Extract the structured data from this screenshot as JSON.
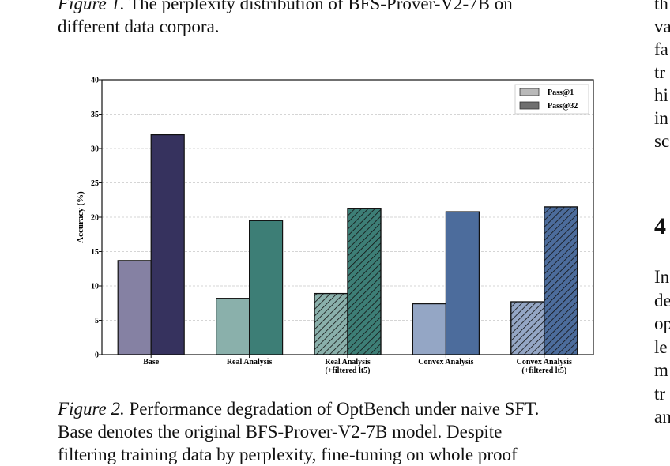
{
  "fig1_caption": {
    "label": "Figure 1.",
    "line1": "The perplexity distribution of BFS-Prover-V2-7B on",
    "line2": "different data corpora."
  },
  "fig2_caption": {
    "label": "Figure 2.",
    "line1": "Performance degradation of OptBench under naive SFT.",
    "line2": "Base denotes the original BFS-Prover-V2-7B model.  Despite",
    "line3": "filtering training data by perplexity, fine-tuning on whole proof"
  },
  "right_column": {
    "top_lines": [
      "th",
      "va",
      "fa",
      "tr",
      "hi",
      "in",
      "sc"
    ],
    "section_number": "4",
    "bottom_lines": [
      "In",
      "de",
      "op",
      "le",
      "m",
      "tr",
      "an"
    ]
  },
  "chart_data": {
    "type": "bar",
    "categories": [
      "Base",
      "Real Analysis",
      "Real Analysis\n(+filtered lt5)",
      "Convex Analysis",
      "Convex Analysis\n(+filtered lt5)"
    ],
    "category_lines": [
      [
        "Base"
      ],
      [
        "Real Analysis"
      ],
      [
        "Real Analysis",
        "(+filtered lt5)"
      ],
      [
        "Convex Analysis"
      ],
      [
        "Convex Analysis",
        "(+filtered lt5)"
      ]
    ],
    "series": [
      {
        "name": "Pass@1",
        "values": [
          13.7,
          8.2,
          8.9,
          7.4,
          7.7
        ]
      },
      {
        "name": "Pass@32",
        "values": [
          32.0,
          19.5,
          21.3,
          20.8,
          21.5
        ]
      }
    ],
    "hatched": [
      false,
      false,
      true,
      false,
      true
    ],
    "colors": {
      "pass1": [
        "#8581a3",
        "#8ab0ab",
        "#8ab0ab",
        "#94a6c5",
        "#94a6c5"
      ],
      "pass32": [
        "#36325e",
        "#3d7e76",
        "#3d7e76",
        "#4c6c9c",
        "#4c6c9c"
      ]
    },
    "legend_colors": [
      "#b9b9b9",
      "#6f6f6f"
    ],
    "ylabel": "Accuracy (%)",
    "xlabel": "",
    "ylim": [
      0,
      40
    ],
    "yticks": [
      0,
      5,
      10,
      15,
      20,
      25,
      30,
      35,
      40
    ],
    "grid": true,
    "legend_position": "top-right"
  }
}
